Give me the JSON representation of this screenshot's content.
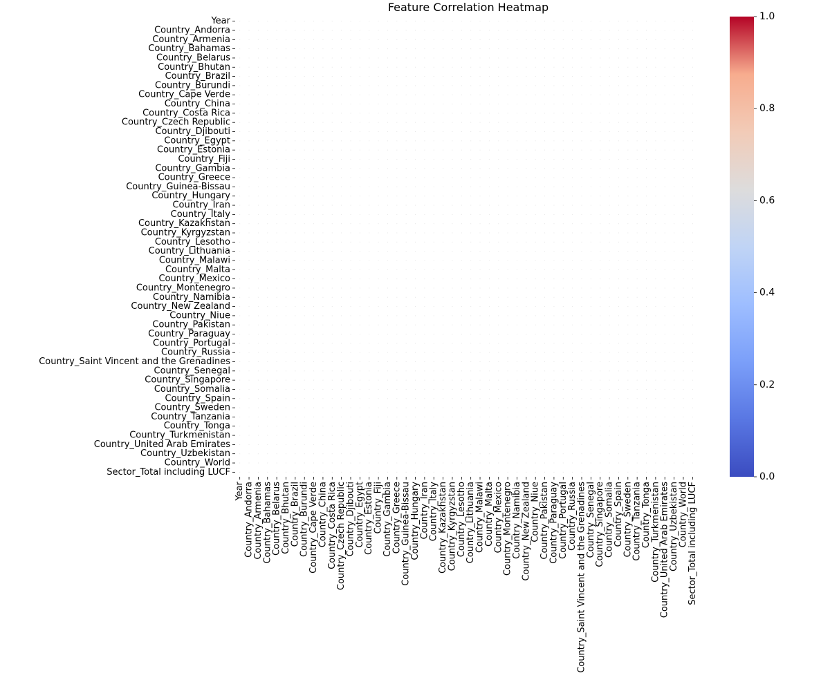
{
  "chart_data": {
    "type": "heatmap",
    "title": "Feature Correlation Heatmap",
    "xlabel": "",
    "ylabel": "",
    "labels": [
      "Year",
      "Country_Andorra",
      "Country_Armenia",
      "Country_Bahamas",
      "Country_Belarus",
      "Country_Bhutan",
      "Country_Brazil",
      "Country_Burundi",
      "Country_Cape Verde",
      "Country_China",
      "Country_Costa Rica",
      "Country_Czech Republic",
      "Country_Djibouti",
      "Country_Egypt",
      "Country_Estonia",
      "Country_Fiji",
      "Country_Gambia",
      "Country_Greece",
      "Country_Guinea-Bissau",
      "Country_Hungary",
      "Country_Iran",
      "Country_Italy",
      "Country_Kazakhstan",
      "Country_Kyrgyzstan",
      "Country_Lesotho",
      "Country_Lithuania",
      "Country_Malawi",
      "Country_Malta",
      "Country_Mexico",
      "Country_Montenegro",
      "Country_Namibia",
      "Country_New Zealand",
      "Country_Niue",
      "Country_Pakistan",
      "Country_Paraguay",
      "Country_Portugal",
      "Country_Russia",
      "Country_Saint Vincent and the Grenadines",
      "Country_Senegal",
      "Country_Singapore",
      "Country_Somalia",
      "Country_Spain",
      "Country_Sweden",
      "Country_Tanzania",
      "Country_Tonga",
      "Country_Turkmenistan",
      "Country_United Arab Emirates",
      "Country_Uzbekistan",
      "Country_World",
      "Sector_Total including LUCF"
    ],
    "colorbar": {
      "colormap": "coolwarm",
      "range": [
        0.0,
        1.0
      ],
      "ticks": [
        "0.0",
        "0.2",
        "0.4",
        "0.6",
        "0.8",
        "1.0"
      ]
    },
    "grid": false,
    "legend": "colorbar-right"
  }
}
